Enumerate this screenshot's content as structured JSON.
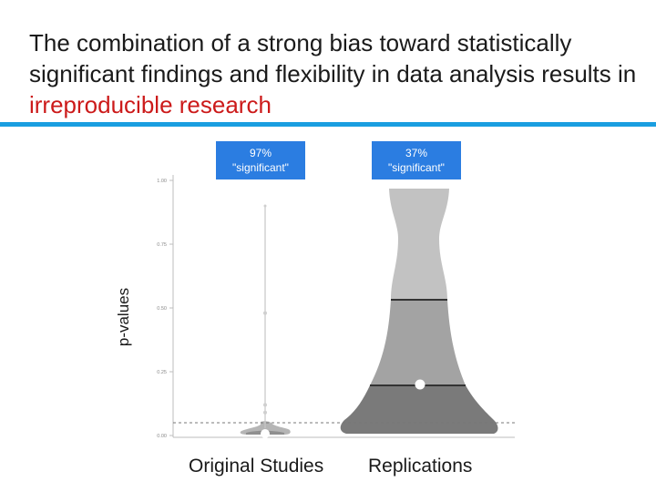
{
  "slide": {
    "title_part1": "The combination of a strong bias toward statistically significant findings and flexibility in data analysis results in ",
    "title_part2": "irreproducible research",
    "accent_color": "#cc1a1a",
    "rule_color": "#1a9ee0"
  },
  "chart_data": {
    "type": "violin",
    "ylabel": "p-values",
    "ylim": [
      0,
      1.0
    ],
    "yticks": [
      "0.00",
      "0.25",
      "0.50",
      "0.75",
      "1.00"
    ],
    "threshold_line": 0.05,
    "categories": [
      "Original Studies",
      "Replications"
    ],
    "callouts": [
      {
        "category": "Original Studies",
        "line1": "97%",
        "line2": "\"significant\""
      },
      {
        "category": "Replications",
        "line1": "37%",
        "line2": "\"significant\""
      }
    ],
    "series": [
      {
        "category": "Original Studies",
        "mean": 0.0,
        "outliers": [
          0.48,
          0.12,
          0.09
        ],
        "whisker_max": 0.9
      },
      {
        "category": "Replications",
        "mean": 0.2,
        "quartile_lines": [
          0.2,
          0.54
        ],
        "max": 0.97
      }
    ]
  }
}
